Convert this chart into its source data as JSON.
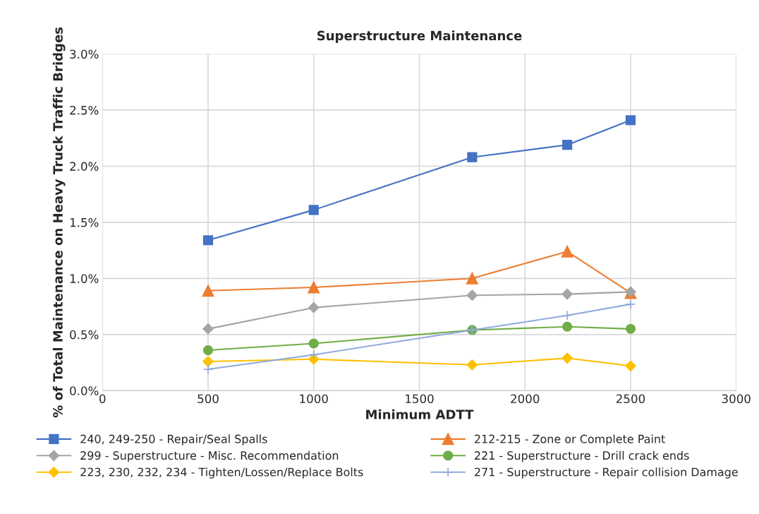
{
  "chart_data": {
    "type": "line",
    "title": "Superstructure Maintenance",
    "xlabel": "Minimum ADTT",
    "ylabel": "% of Total Maintenance on Heavy Truck Traffic Bridges",
    "x": [
      500,
      1000,
      1750,
      2200,
      2500
    ],
    "xlim": [
      0,
      3000
    ],
    "xticks": [
      0,
      500,
      1000,
      1500,
      2000,
      2500,
      3000
    ],
    "ylim": [
      0,
      3.0
    ],
    "yticks": [
      {
        "value": 0,
        "label": "0.0%"
      },
      {
        "value": 0.5,
        "label": "0.5%"
      },
      {
        "value": 1.0,
        "label": "1.0%"
      },
      {
        "value": 1.5,
        "label": "1.5%"
      },
      {
        "value": 2.0,
        "label": "2.0%"
      },
      {
        "value": 2.5,
        "label": "2.5%"
      },
      {
        "value": 3.0,
        "label": "3.0%"
      }
    ],
    "grid": true,
    "legend": "bottom",
    "series": [
      {
        "name": "240, 249-250 - Repair/Seal Spalls",
        "color": "#4472c4",
        "marker": "square",
        "values": [
          1.34,
          1.61,
          2.08,
          2.19,
          2.41
        ]
      },
      {
        "name": "212-215 - Zone or Complete Paint",
        "color": "#ed7d31",
        "marker": "triangle",
        "values": [
          0.89,
          0.92,
          1.0,
          1.24,
          0.87
        ]
      },
      {
        "name": "299 - Superstructure - Misc. Recommendation",
        "color": "#a5a5a5",
        "marker": "diamond",
        "values": [
          0.55,
          0.74,
          0.85,
          0.86,
          0.88
        ]
      },
      {
        "name": "221 - Superstructure - Drill crack ends",
        "color": "#70ad47",
        "marker": "circle",
        "values": [
          0.36,
          0.42,
          0.54,
          0.57,
          0.55
        ]
      },
      {
        "name": "223, 230, 232, 234 - Tighten/Lossen/Replace Bolts",
        "color": "#ffc000",
        "marker": "diamond",
        "values": [
          0.26,
          0.28,
          0.23,
          0.29,
          0.22
        ]
      },
      {
        "name": "271 - Superstructure - Repair collision Damage",
        "color": "#8faadc",
        "marker": "cross",
        "values": [
          0.19,
          0.32,
          0.54,
          0.67,
          0.77
        ]
      }
    ]
  }
}
